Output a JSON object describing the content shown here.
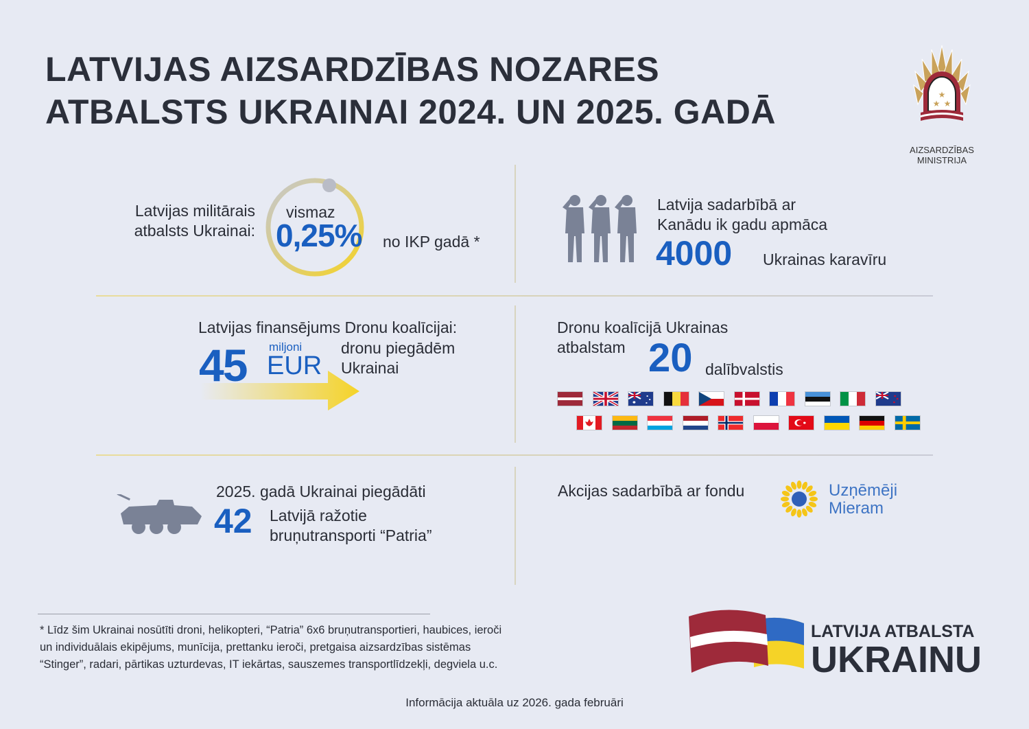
{
  "title": {
    "line1": "LATVIJAS AIZSARDZĪBAS NOZARES",
    "line2": "ATBALSTS UKRAINAI 2024. UN 2025. GADĀ"
  },
  "logo": {
    "line1": "AIZSARDZĪBAS",
    "line2": "MINISTRIJA"
  },
  "gdp": {
    "label_line1": "Latvijas militārais",
    "label_line2": "atbalsts Ukrainai:",
    "prefix": "vismaz",
    "value": "0,25%",
    "suffix": "no IKP gadā *",
    "progress_percent": 0.25
  },
  "training": {
    "line1": "Latvija sadarbībā ar",
    "line2": "Kanādu ik gadu apmāca",
    "value": "4000",
    "suffix": "Ukrainas karavīru"
  },
  "funding": {
    "heading": "Latvijas finansējums Dronu koalīcijai:",
    "value": "45",
    "unit_small": "miljoni",
    "unit": "EUR",
    "desc_line1": "dronu piegādēm",
    "desc_line2": "Ukrainai"
  },
  "coalition": {
    "line1": "Dronu koalīcijā Ukrainas",
    "line2": "atbalstam",
    "value": "20",
    "suffix": "dalībvalstis",
    "flags": [
      "latvia",
      "united-kingdom",
      "australia",
      "belgium",
      "czechia",
      "denmark",
      "france",
      "estonia",
      "italy",
      "new-zealand",
      "canada",
      "lithuania",
      "luxembourg",
      "netherlands",
      "norway",
      "poland",
      "turkey",
      "ukraine",
      "germany",
      "sweden"
    ]
  },
  "patria": {
    "line1": "2025. gadā Ukrainai piegādāti",
    "value": "42",
    "desc_line1": "Latvijā ražotie",
    "desc_line2": "bruņutransporti “Patria”"
  },
  "fund": {
    "label": "Akcijas sadarbībā ar fondu",
    "name_line1": "Uzņēmēji",
    "name_line2": "Mieram"
  },
  "footnote": {
    "line1": "* Līdz šim Ukrainai nosūtīti droni, helikopteri, “Patria” 6x6 bruņutransportieri, haubices, ieroči",
    "line2": "un individuālais ekipējums, munīcija, prettanku ieroči, pretgaisa aizsardzības sistēmas",
    "line3": "“Stinger”, radari, pārtikas uzturdevas, IT iekārtas, sauszemes transportlīdzekļi, degviela u.c."
  },
  "brand": {
    "line1": "LATVIJA ATBALSTA",
    "line2": "UKRAINU"
  },
  "updated": "Informācija aktuāla uz 2026. gada februāri",
  "colors": {
    "accent_blue": "#1a5fc0",
    "yellow": "#f5d327",
    "latvia_red": "#9e2a3a",
    "background": "#e7eaf3"
  }
}
